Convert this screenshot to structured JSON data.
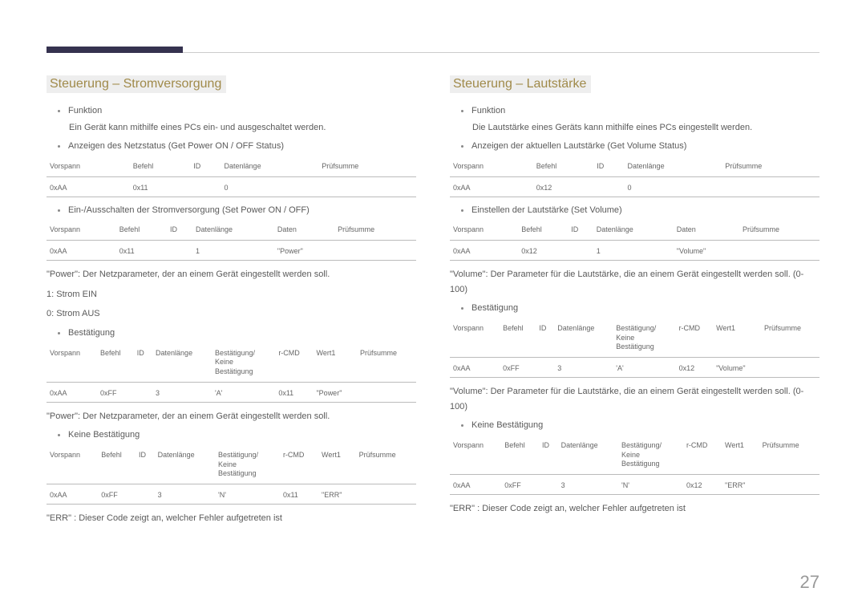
{
  "pageNumber": "27",
  "left": {
    "heading": "Steuerung – Stromversorgung",
    "bullets": {
      "funktion": "Funktion",
      "funktionDesc": "Ein Gerät kann mithilfe eines PCs ein- und ausgeschaltet werden.",
      "status": "Anzeigen des Netzstatus (Get Power ON / OFF Status)",
      "set": "Ein-/Ausschalten der Stromversorgung (Set Power ON / OFF)",
      "bestaetigung": "Bestätigung",
      "keineBestaetigung": "Keine Bestätigung"
    },
    "table1": {
      "headers": [
        "Vorspann",
        "Befehl",
        "ID",
        "Datenlänge",
        "Prüfsumme"
      ],
      "row": [
        "0xAA",
        "0x11",
        "",
        "0",
        ""
      ]
    },
    "table2": {
      "headers": [
        "Vorspann",
        "Befehl",
        "ID",
        "Datenlänge",
        "Daten",
        "Prüfsumme"
      ],
      "row": [
        "0xAA",
        "0x11",
        "",
        "1",
        "\"Power\"",
        ""
      ]
    },
    "powerDesc": "\"Power\": Der Netzparameter, der an einem Gerät eingestellt werden soll.",
    "powerOn": "1: Strom EIN",
    "powerOff": "0: Strom AUS",
    "table3": {
      "headers": [
        "Vorspann",
        "Befehl",
        "ID",
        "Datenlänge",
        "Bestätigung/\nKeine\nBestätigung",
        "r-CMD",
        "Wert1",
        "Prüfsumme"
      ],
      "row": [
        "0xAA",
        "0xFF",
        "",
        "3",
        "'A'",
        "0x11",
        "\"Power\"",
        ""
      ]
    },
    "powerDesc2": "\"Power\": Der Netzparameter, der an einem Gerät eingestellt werden soll.",
    "table4": {
      "headers": [
        "Vorspann",
        "Befehl",
        "ID",
        "Datenlänge",
        "Bestätigung/\nKeine\nBestätigung",
        "r-CMD",
        "Wert1",
        "Prüfsumme"
      ],
      "row": [
        "0xAA",
        "0xFF",
        "",
        "3",
        "'N'",
        "0x11",
        "\"ERR\"",
        ""
      ]
    },
    "errDesc": "\"ERR\" : Dieser Code zeigt an, welcher Fehler aufgetreten ist"
  },
  "right": {
    "heading": "Steuerung – Lautstärke",
    "bullets": {
      "funktion": "Funktion",
      "funktionDesc": "Die Lautstärke eines Geräts kann mithilfe eines PCs eingestellt werden.",
      "status": "Anzeigen der aktuellen Lautstärke (Get Volume Status)",
      "set": "Einstellen der Lautstärke (Set Volume)",
      "bestaetigung": "Bestätigung",
      "keineBestaetigung": "Keine Bestätigung"
    },
    "table1": {
      "headers": [
        "Vorspann",
        "Befehl",
        "ID",
        "Datenlänge",
        "Prüfsumme"
      ],
      "row": [
        "0xAA",
        "0x12",
        "",
        "0",
        ""
      ]
    },
    "table2": {
      "headers": [
        "Vorspann",
        "Befehl",
        "ID",
        "Datenlänge",
        "Daten",
        "Prüfsumme"
      ],
      "row": [
        "0xAA",
        "0x12",
        "",
        "1",
        "\"Volume\"",
        ""
      ]
    },
    "volumeDesc": "\"Volume\": Der Parameter für die Lautstärke, die an einem Gerät eingestellt werden soll. (0-100)",
    "table3": {
      "headers": [
        "Vorspann",
        "Befehl",
        "ID",
        "Datenlänge",
        "Bestätigung/\nKeine\nBestätigung",
        "r-CMD",
        "Wert1",
        "Prüfsumme"
      ],
      "row": [
        "0xAA",
        "0xFF",
        "",
        "3",
        "'A'",
        "0x12",
        "\"Volume\"",
        ""
      ]
    },
    "volumeDesc2": "\"Volume\": Der Parameter für die Lautstärke, die an einem Gerät eingestellt werden soll. (0-100)",
    "table4": {
      "headers": [
        "Vorspann",
        "Befehl",
        "ID",
        "Datenlänge",
        "Bestätigung/\nKeine\nBestätigung",
        "r-CMD",
        "Wert1",
        "Prüfsumme"
      ],
      "row": [
        "0xAA",
        "0xFF",
        "",
        "3",
        "'N'",
        "0x12",
        "\"ERR\"",
        ""
      ]
    },
    "errDesc": "\"ERR\" : Dieser Code zeigt an, welcher Fehler aufgetreten ist"
  }
}
